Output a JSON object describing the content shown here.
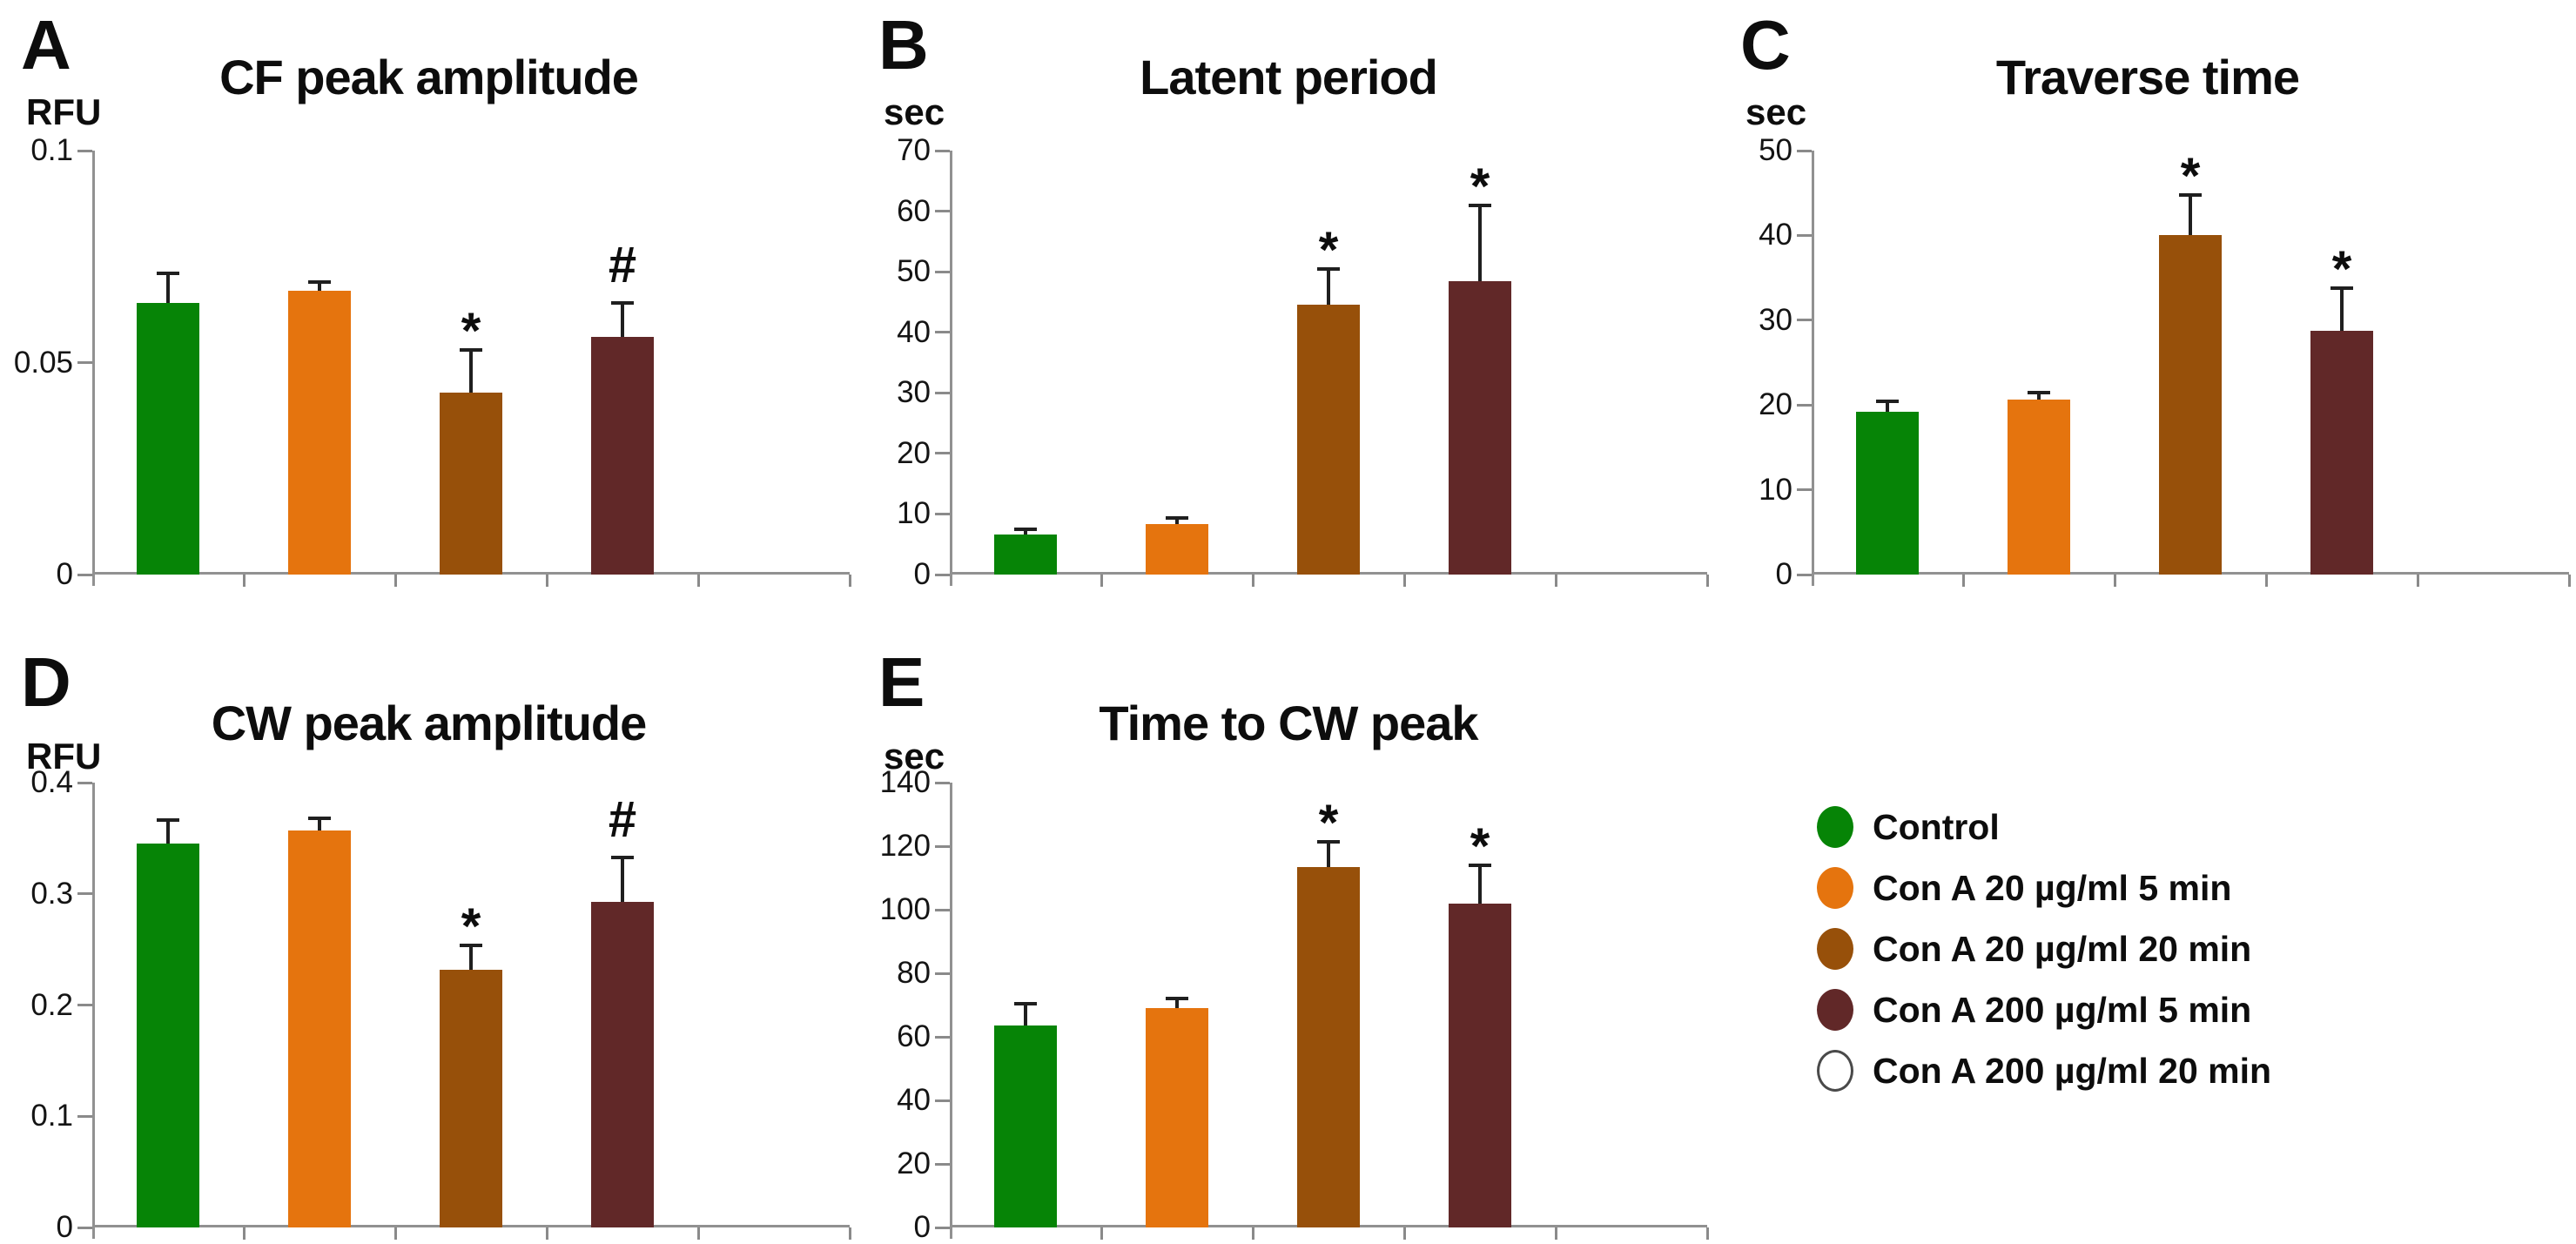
{
  "figure": {
    "background": "#ffffff",
    "axis_color": "#919191",
    "error_bar_color": "#1f1f1f",
    "text_color": "#0d0d0d"
  },
  "legend": {
    "items": [
      {
        "label": "Control",
        "color": "#068406",
        "outline": null
      },
      {
        "label": "Con A 20 µg/ml 5 min",
        "color": "#E5740E",
        "outline": null
      },
      {
        "label": "Con A 20 µg/ml 20 min",
        "color": "#97500A",
        "outline": null
      },
      {
        "label": "Con A 200 µg/ml 5 min",
        "color": "#612828",
        "outline": null
      },
      {
        "label": "Con A 200 µg/ml 20 min",
        "color": "#FFFFFF",
        "outline": "#4a4a4a"
      }
    ]
  },
  "chart_data": [
    {
      "panel": "A",
      "type": "bar",
      "title": "CF peak amplitude",
      "ylabel": "RFU",
      "ylim": [
        0,
        0.1
      ],
      "yticks": [
        "0",
        "0.05",
        "0.1"
      ],
      "categories": [
        "Control",
        "Con A 20 µg/ml 5 min",
        "Con A 20 µg/ml 20 min",
        "Con A 200 µg/ml 5 min",
        "Con A 200 µg/ml 20 min"
      ],
      "values": [
        0.064,
        0.067,
        0.043,
        0.056,
        0
      ],
      "errors": [
        0.007,
        0.002,
        0.01,
        0.008,
        0
      ],
      "annotations": [
        "",
        "",
        "*",
        "#",
        ""
      ],
      "colors": [
        "#068406",
        "#E5740E",
        "#97500A",
        "#612828",
        "#FFFFFF"
      ],
      "grid": false,
      "legend_position": "none"
    },
    {
      "panel": "B",
      "type": "bar",
      "title": "Latent period",
      "ylabel": "sec",
      "ylim": [
        0,
        70
      ],
      "yticks": [
        "0",
        "10",
        "20",
        "30",
        "40",
        "50",
        "60",
        "70"
      ],
      "categories": [
        "Control",
        "Con A 20 µg/ml 5 min",
        "Con A 20 µg/ml 20 min",
        "Con A 200 µg/ml 5 min",
        "Con A 200 µg/ml 20 min"
      ],
      "values": [
        6.6,
        8.3,
        44.5,
        48.5,
        0
      ],
      "errors": [
        0.9,
        1.0,
        6.0,
        12.5,
        0
      ],
      "annotations": [
        "",
        "",
        "*",
        "*",
        ""
      ],
      "colors": [
        "#068406",
        "#E5740E",
        "#97500A",
        "#612828",
        "#FFFFFF"
      ],
      "grid": false,
      "legend_position": "none"
    },
    {
      "panel": "C",
      "type": "bar",
      "title": "Traverse time",
      "ylabel": "sec",
      "ylim": [
        0,
        50
      ],
      "yticks": [
        "0",
        "10",
        "20",
        "30",
        "40",
        "50"
      ],
      "categories": [
        "Control",
        "Con A 20 µg/ml 5 min",
        "Con A 20 µg/ml 20 min",
        "Con A 200 µg/ml 5 min",
        "Con A 200 µg/ml 20 min"
      ],
      "values": [
        19.2,
        20.6,
        40.0,
        28.8,
        0
      ],
      "errors": [
        1.2,
        0.9,
        4.8,
        5.0,
        0
      ],
      "annotations": [
        "",
        "",
        "*",
        "*",
        ""
      ],
      "colors": [
        "#068406",
        "#E5740E",
        "#97500A",
        "#612828",
        "#FFFFFF"
      ],
      "grid": false,
      "legend_position": "none"
    },
    {
      "panel": "D",
      "type": "bar",
      "title": "CW peak amplitude",
      "ylabel": "RFU",
      "ylim": [
        0,
        0.4
      ],
      "yticks": [
        "0",
        "0.1",
        "0.2",
        "0.3",
        "0.4"
      ],
      "categories": [
        "Control",
        "Con A 20 µg/ml 5 min",
        "Con A 20 µg/ml 20 min",
        "Con A 200 µg/ml 5 min",
        "Con A 200 µg/ml 20 min"
      ],
      "values": [
        0.345,
        0.357,
        0.232,
        0.293,
        0
      ],
      "errors": [
        0.021,
        0.011,
        0.022,
        0.04,
        0
      ],
      "annotations": [
        "",
        "",
        "*",
        "#",
        ""
      ],
      "colors": [
        "#068406",
        "#E5740E",
        "#97500A",
        "#612828",
        "#FFFFFF"
      ],
      "grid": false,
      "legend_position": "none"
    },
    {
      "panel": "E",
      "type": "bar",
      "title": "Time to CW peak",
      "ylabel": "sec",
      "ylim": [
        0,
        140
      ],
      "yticks": [
        "0",
        "20",
        "40",
        "60",
        "80",
        "100",
        "120",
        "140"
      ],
      "categories": [
        "Control",
        "Con A 20 µg/ml 5 min",
        "Con A 20 µg/ml 20 min",
        "Con A 200 µg/ml 5 min",
        "Con A 200 µg/ml 20 min"
      ],
      "values": [
        63.5,
        69.0,
        113.5,
        102.0,
        0
      ],
      "errors": [
        7.0,
        3.0,
        8.0,
        12.0,
        0
      ],
      "annotations": [
        "",
        "",
        "*",
        "*",
        ""
      ],
      "colors": [
        "#068406",
        "#E5740E",
        "#97500A",
        "#612828",
        "#FFFFFF"
      ],
      "grid": false,
      "legend_position": "bottom-right-cell"
    }
  ]
}
